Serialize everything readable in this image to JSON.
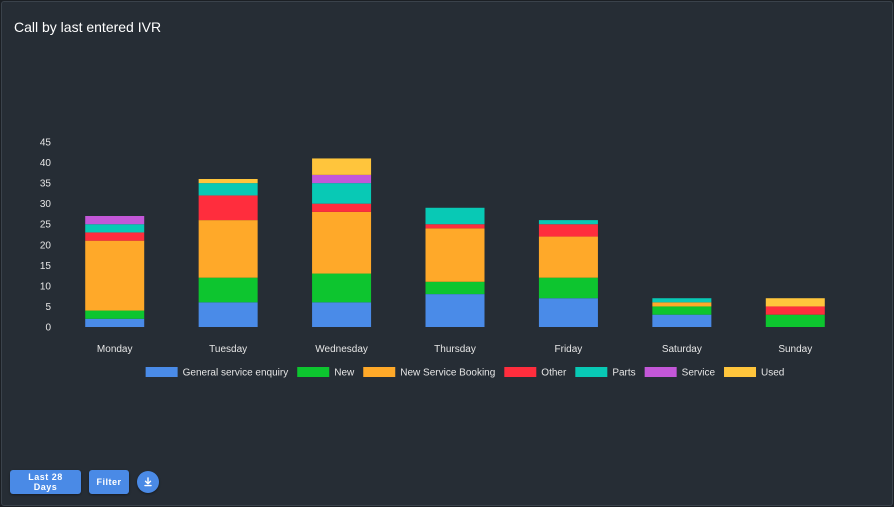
{
  "panel": {
    "title": "Call by last entered IVR"
  },
  "controls": {
    "last_label": "Last 28 Days",
    "filter_label": "Filter",
    "download_icon": "download-icon"
  },
  "chart_data": {
    "type": "bar",
    "stacked": true,
    "title": "",
    "xlabel": "",
    "ylabel": "",
    "categories": [
      "Monday",
      "Tuesday",
      "Wednesday",
      "Thursday",
      "Friday",
      "Saturday",
      "Sunday"
    ],
    "ylim": [
      0,
      45
    ],
    "yticks": [
      0,
      5,
      10,
      15,
      20,
      25,
      30,
      35,
      40,
      45
    ],
    "grid": false,
    "legend_position": "bottom",
    "series": [
      {
        "name": "General service enquiry",
        "color": "#4a8be8",
        "values": [
          2,
          6,
          6,
          8,
          7,
          3,
          0
        ]
      },
      {
        "name": "New",
        "color": "#0dc52f",
        "values": [
          2,
          6,
          7,
          3,
          5,
          2,
          3
        ]
      },
      {
        "name": "New Service Booking",
        "color": "#ffa929",
        "values": [
          17,
          14,
          15,
          13,
          10,
          1,
          0
        ]
      },
      {
        "name": "Other",
        "color": "#ff2d3d",
        "values": [
          2,
          6,
          2,
          1,
          3,
          0,
          2
        ]
      },
      {
        "name": "Parts",
        "color": "#08c9b5",
        "values": [
          2,
          3,
          5,
          4,
          1,
          1,
          0
        ]
      },
      {
        "name": "Service",
        "color": "#c357d8",
        "values": [
          2,
          0,
          2,
          0,
          0,
          0,
          0
        ]
      },
      {
        "name": "Used",
        "color": "#ffc53c",
        "values": [
          0,
          1,
          4,
          0,
          0,
          0,
          2
        ]
      }
    ]
  }
}
